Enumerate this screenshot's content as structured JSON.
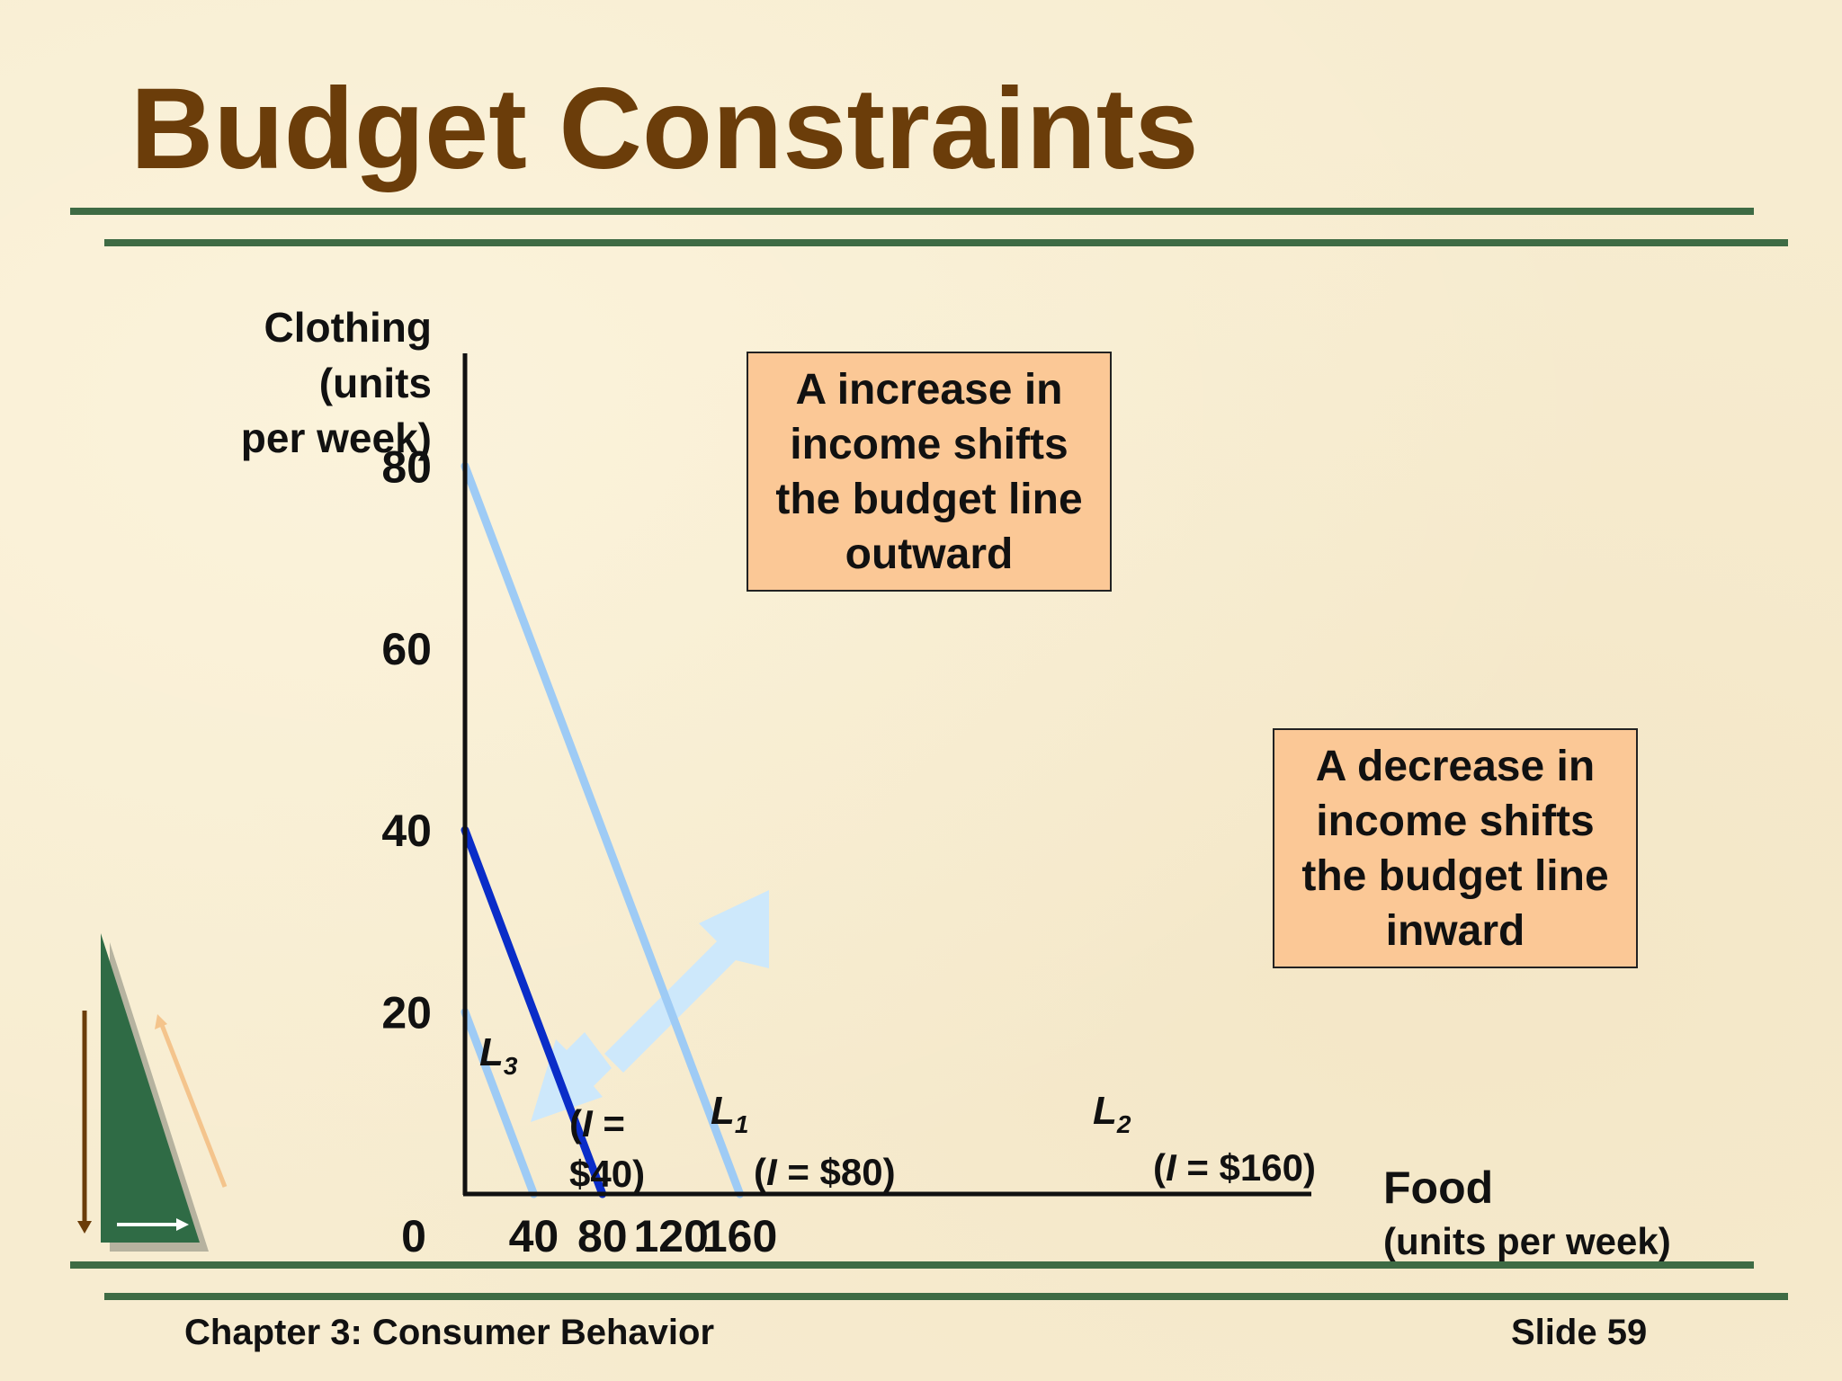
{
  "title": "Budget Constraints",
  "footer": {
    "chapter": "Chapter 3: Consumer Behavior",
    "slide": "Slide 59"
  },
  "callouts": {
    "increase": "A increase in\nincome shifts\nthe budget line\noutward",
    "decrease": "A decrease in\nincome shifts\nthe budget line\ninward"
  },
  "colors": {
    "title": "#6b3d0a",
    "rule": "#3e6b44",
    "line_light": "#9ecbf5",
    "line_dark": "#0a2dc8",
    "arrow": "#cde8fb",
    "callout_bg": "#fbc896"
  },
  "chart_data": {
    "type": "line",
    "ylabel": [
      "Clothing",
      "(units",
      "per week)"
    ],
    "xlabel": [
      "Food",
      "(units per week)"
    ],
    "x_ticks": [
      40,
      80,
      120,
      160
    ],
    "y_ticks": [
      20,
      40,
      60,
      80
    ],
    "origin_label": "0",
    "xlim": [
      0,
      196
    ],
    "ylim": [
      0,
      80
    ],
    "grid": false,
    "series": [
      {
        "name": "L3",
        "label_main": "L",
        "label_sub": "3",
        "income_label": [
          "(I =",
          "$40)"
        ],
        "x": [
          0,
          20
        ],
        "y": [
          20,
          0
        ],
        "color": "#9ecbf5"
      },
      {
        "name": "L1",
        "label_main": "L",
        "label_sub": "1",
        "income_label": [
          "(I = $80)"
        ],
        "x": [
          0,
          40
        ],
        "y": [
          40,
          0
        ],
        "color": "#0a2dc8"
      },
      {
        "name": "L2",
        "label_main": "L",
        "label_sub": "2",
        "income_label": [
          "(I = $160)"
        ],
        "x": [
          0,
          80
        ],
        "y": [
          80,
          0
        ],
        "color": "#9ecbf5"
      }
    ]
  }
}
